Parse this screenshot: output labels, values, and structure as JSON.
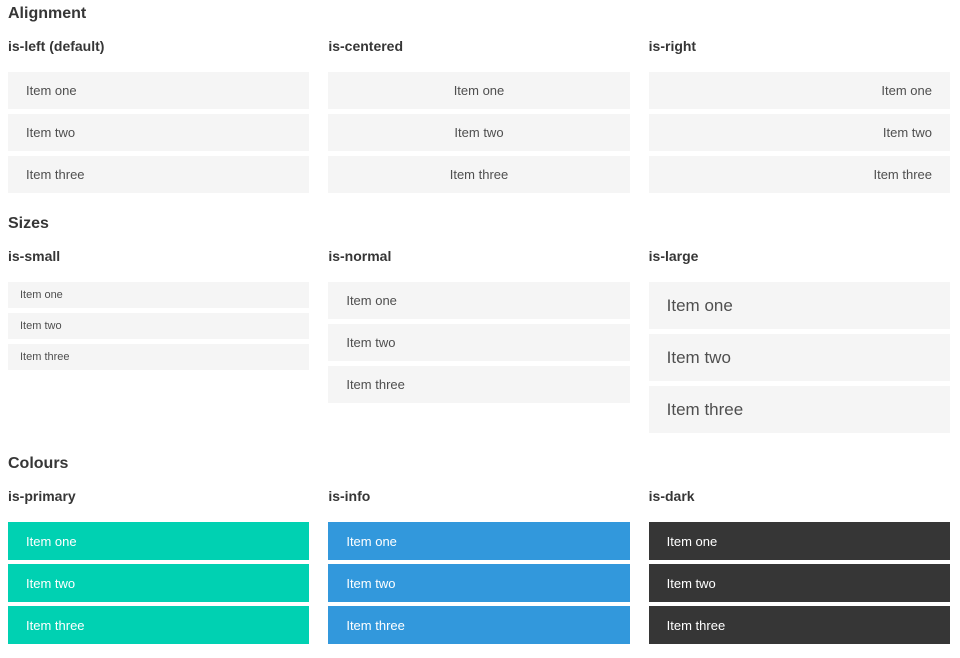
{
  "colors": {
    "item_bg": "#f5f5f5",
    "item_text": "#4f4f4f",
    "heading_text": "#363636",
    "primary": "#00d1b2",
    "info": "#3298dc",
    "dark": "#363636",
    "colored_text": "#ffffff"
  },
  "sections": [
    {
      "title": "Alignment",
      "columns": [
        {
          "subtitle": "is-left (default)",
          "items": [
            "Item one",
            "Item two",
            "Item three"
          ]
        },
        {
          "subtitle": "is-centered",
          "items": [
            "Item one",
            "Item two",
            "Item three"
          ]
        },
        {
          "subtitle": "is-right",
          "items": [
            "Item one",
            "Item two",
            "Item three"
          ]
        }
      ]
    },
    {
      "title": "Sizes",
      "columns": [
        {
          "subtitle": "is-small",
          "items": [
            "Item one",
            "Item two",
            "Item three"
          ]
        },
        {
          "subtitle": "is-normal",
          "items": [
            "Item one",
            "Item two",
            "Item three"
          ]
        },
        {
          "subtitle": "is-large",
          "items": [
            "Item one",
            "Item two",
            "Item three"
          ]
        }
      ]
    },
    {
      "title": "Colours",
      "columns": [
        {
          "subtitle": "is-primary",
          "items": [
            "Item one",
            "Item two",
            "Item three"
          ]
        },
        {
          "subtitle": "is-info",
          "items": [
            "Item one",
            "Item two",
            "Item three"
          ]
        },
        {
          "subtitle": "is-dark",
          "items": [
            "Item one",
            "Item two",
            "Item three"
          ]
        }
      ]
    }
  ]
}
